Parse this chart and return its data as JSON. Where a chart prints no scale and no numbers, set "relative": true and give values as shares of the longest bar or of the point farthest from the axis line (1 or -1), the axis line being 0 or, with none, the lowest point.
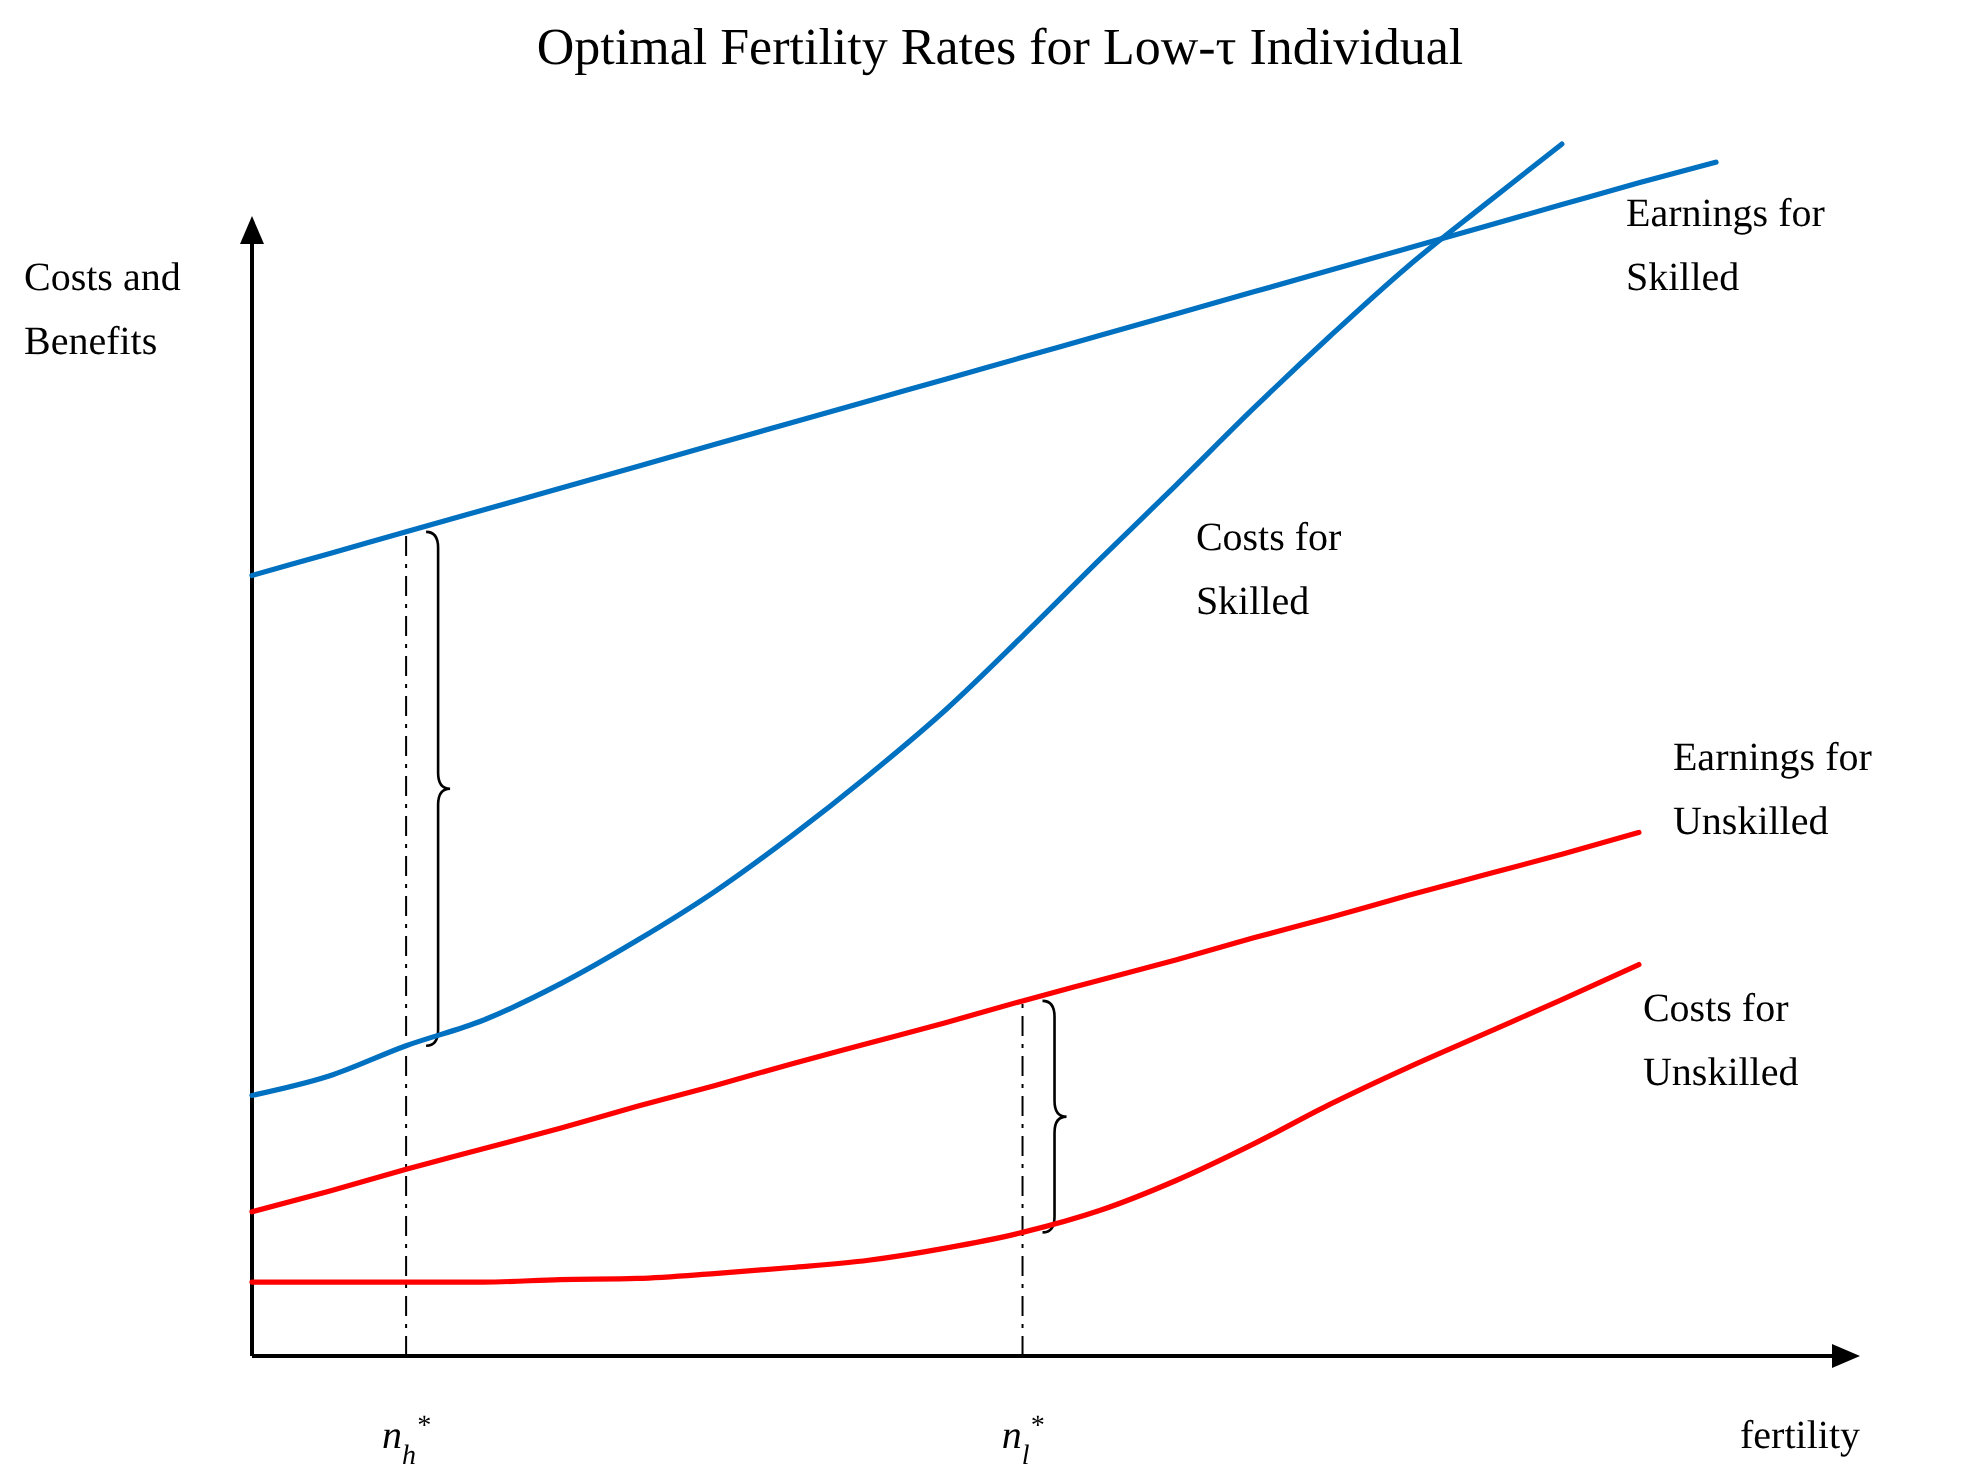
{
  "chart_data": {
    "type": "line",
    "title": "Optimal Fertility Rates for Low-τ Individual",
    "xlabel": "fertility",
    "ylabel": "Costs and Benefits",
    "relative": true,
    "categories": [
      null,
      null,
      "n$_{h}$$^{*}$",
      null,
      null,
      null,
      null,
      null,
      null,
      null,
      "n$_{l}$$^{*}$",
      null,
      null,
      null,
      null,
      null,
      null,
      null,
      null,
      null
    ],
    "series": [
      {
        "name": "Earnings for Skilled",
        "color": "#0070c0",
        "values": [
          0.644,
          0.662,
          0.68,
          0.698,
          0.716,
          0.734,
          0.752,
          0.77,
          0.788,
          0.806,
          0.824,
          0.842,
          0.86,
          0.878,
          0.896,
          0.914,
          0.932,
          0.95,
          0.968,
          0.985
        ]
      },
      {
        "name": "Costs for Skilled",
        "color": "#0070c0",
        "values": [
          0.215,
          0.231,
          0.256,
          0.277,
          0.307,
          0.343,
          0.383,
          0.429,
          0.479,
          0.533,
          0.594,
          0.657,
          0.719,
          0.782,
          0.842,
          0.899,
          0.95,
          1.0,
          null,
          null
        ]
      },
      {
        "name": "Earnings for Unskilled",
        "color": "#ff0000",
        "values": [
          0.119,
          0.136,
          0.154,
          0.171,
          0.188,
          0.206,
          0.223,
          0.241,
          0.258,
          0.275,
          0.293,
          0.31,
          0.327,
          0.345,
          0.362,
          0.38,
          0.397,
          0.414,
          0.432,
          null
        ]
      },
      {
        "name": "Costs for Unskilled",
        "color": "#ff0000",
        "values": [
          0.061,
          0.061,
          0.061,
          0.061,
          0.063,
          0.064,
          0.068,
          0.073,
          0.079,
          0.089,
          0.102,
          0.12,
          0.145,
          0.175,
          0.208,
          0.238,
          0.266,
          0.294,
          0.323,
          null
        ]
      }
    ],
    "ref_lines": [
      {
        "axis": "x",
        "value": "n$_{h}$$^{*}$",
        "line_style": "dashed",
        "color": "#000000"
      },
      {
        "axis": "x",
        "value": "n$_{l}$$^{*}$",
        "line_style": "dashed",
        "color": "#000000"
      }
    ]
  }
}
